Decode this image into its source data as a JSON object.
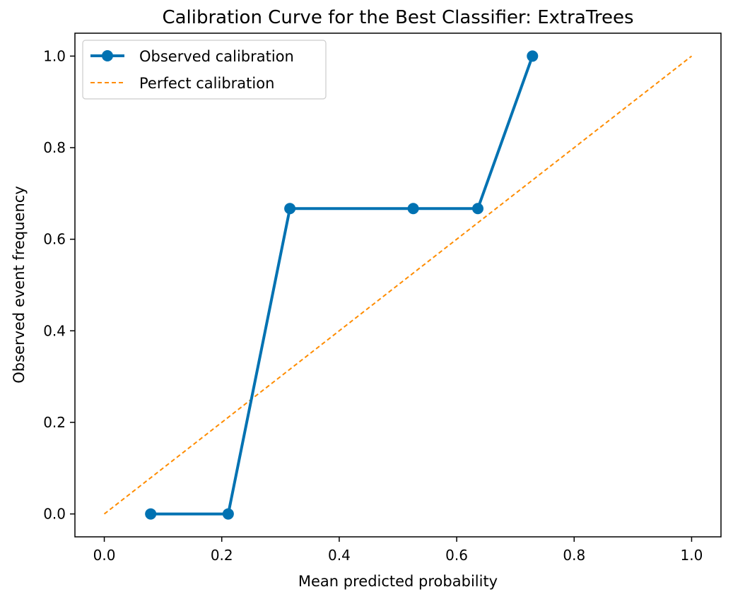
{
  "chart_data": {
    "type": "line",
    "title": "Calibration Curve for the Best Classifier: ExtraTrees",
    "xlabel": "Mean predicted probability",
    "ylabel": "Observed event frequency",
    "xlim": [
      -0.05,
      1.05
    ],
    "ylim": [
      -0.05,
      1.05
    ],
    "xticks": [
      0.0,
      0.2,
      0.4,
      0.6,
      0.8,
      1.0
    ],
    "xtick_labels": [
      "0.0",
      "0.2",
      "0.4",
      "0.6",
      "0.8",
      "1.0"
    ],
    "yticks": [
      0.0,
      0.2,
      0.4,
      0.6,
      0.8,
      1.0
    ],
    "ytick_labels": [
      "0.0",
      "0.2",
      "0.4",
      "0.6",
      "0.8",
      "1.0"
    ],
    "grid": false,
    "legend_position": "top-left",
    "series": [
      {
        "name": "Observed calibration",
        "style": "solid-with-markers",
        "color": "#0072b2",
        "x": [
          0.079,
          0.211,
          0.316,
          0.526,
          0.636,
          0.729
        ],
        "y": [
          0.0,
          0.0,
          0.667,
          0.667,
          0.667,
          1.0
        ]
      },
      {
        "name": "Perfect calibration",
        "style": "dashed",
        "color": "#ff8c00",
        "x": [
          0.0,
          1.0
        ],
        "y": [
          0.0,
          1.0
        ]
      }
    ]
  }
}
